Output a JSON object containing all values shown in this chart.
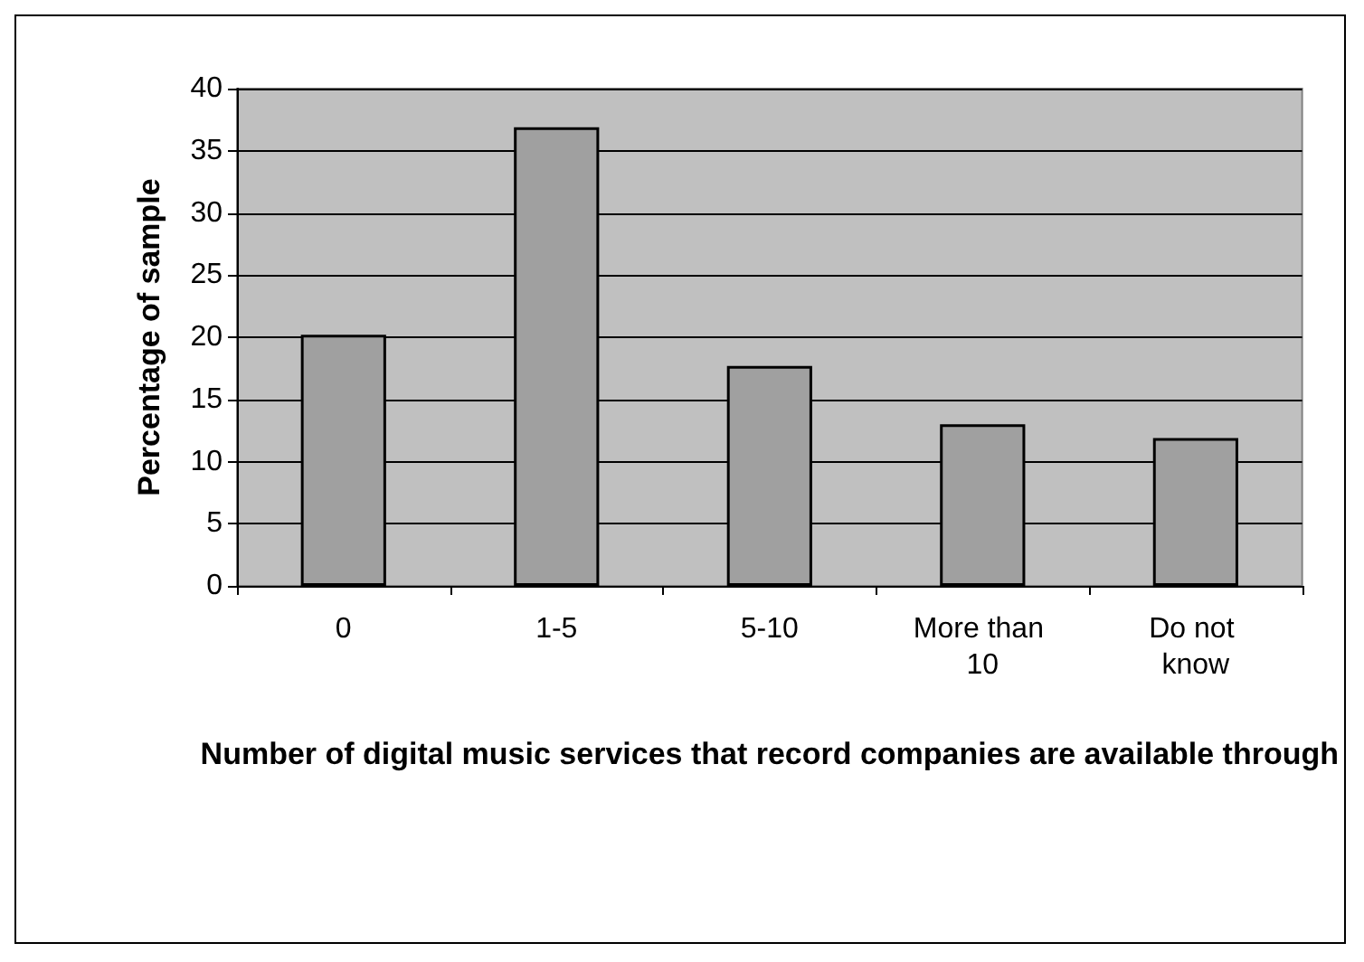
{
  "chart_data": {
    "type": "bar",
    "xlabel": "Number of digital music services that record companies are available through",
    "ylabel": "Percentage of sample",
    "categories": [
      "0",
      "1-5",
      "5-10",
      "More than 10",
      "Do not know"
    ],
    "values": [
      20.2,
      36.9,
      17.7,
      13.0,
      11.9
    ],
    "color": "#a0a0a0",
    "ylim": [
      0,
      40
    ],
    "yticks": [
      0,
      5,
      10,
      15,
      20,
      25,
      30,
      35,
      40
    ],
    "grid": "y"
  }
}
